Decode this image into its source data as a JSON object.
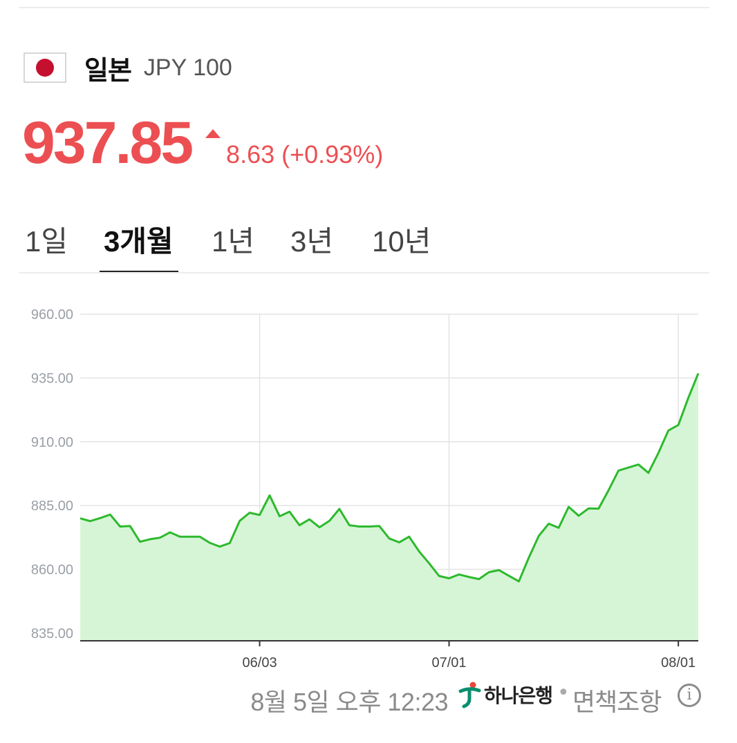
{
  "header": {
    "flag_icon": "japan-flag-icon",
    "country": "일본",
    "code": "JPY 100"
  },
  "quote": {
    "price": "937.85",
    "direction": "up",
    "change": "8.63 (+0.93%)",
    "up_color": "#ec4f52"
  },
  "tabs": [
    {
      "label": "1일",
      "active": false
    },
    {
      "label": "3개월",
      "active": true
    },
    {
      "label": "1년",
      "active": false
    },
    {
      "label": "3년",
      "active": false
    },
    {
      "label": "10년",
      "active": false
    }
  ],
  "chart_data": {
    "type": "area",
    "title": "",
    "xlabel": "",
    "ylabel": "",
    "ylim": [
      832,
      960
    ],
    "yticks": [
      960,
      935,
      910,
      885,
      860,
      835
    ],
    "ytick_labels": [
      "960.00",
      "935.00",
      "910.00",
      "885.00",
      "860.00",
      "835.00"
    ],
    "xtick_labels": [
      {
        "label": "06/03",
        "index": 18
      },
      {
        "label": "07/01",
        "index": 37
      },
      {
        "label": "08/01",
        "index": 60
      }
    ],
    "grid": true,
    "line_color": "#2db92d",
    "fill_color": "#d6f5d6",
    "series": [
      {
        "values": [
          880.0,
          878.9,
          880.1,
          881.5,
          876.8,
          877.0,
          870.8,
          871.8,
          872.4,
          874.5,
          872.8,
          872.8,
          872.8,
          870.4,
          868.9,
          870.3,
          879.0,
          882.2,
          881.3,
          889.0,
          880.8,
          882.6,
          877.3,
          879.6,
          876.5,
          879.0,
          883.7,
          877.3,
          876.8,
          876.8,
          877.0,
          872.1,
          870.6,
          872.8,
          867.0,
          862.4,
          857.4,
          856.5,
          858.0,
          857.0,
          856.2,
          858.9,
          859.7,
          857.5,
          855.3,
          864.6,
          873.1,
          877.9,
          876.3,
          884.5,
          881.0,
          883.9,
          883.8,
          891.0,
          898.7,
          899.9,
          901.1,
          897.8,
          905.6,
          914.4,
          916.6,
          927.2,
          936.8
        ]
      }
    ]
  },
  "footer": {
    "timestamp": "8월 5일 오후 12:23",
    "bank_logo_icon": "hana-bank-logo-icon",
    "bank_name": "하나은행",
    "separator": "•",
    "disclaimer": "면책조항",
    "info_icon": "info-icon"
  }
}
